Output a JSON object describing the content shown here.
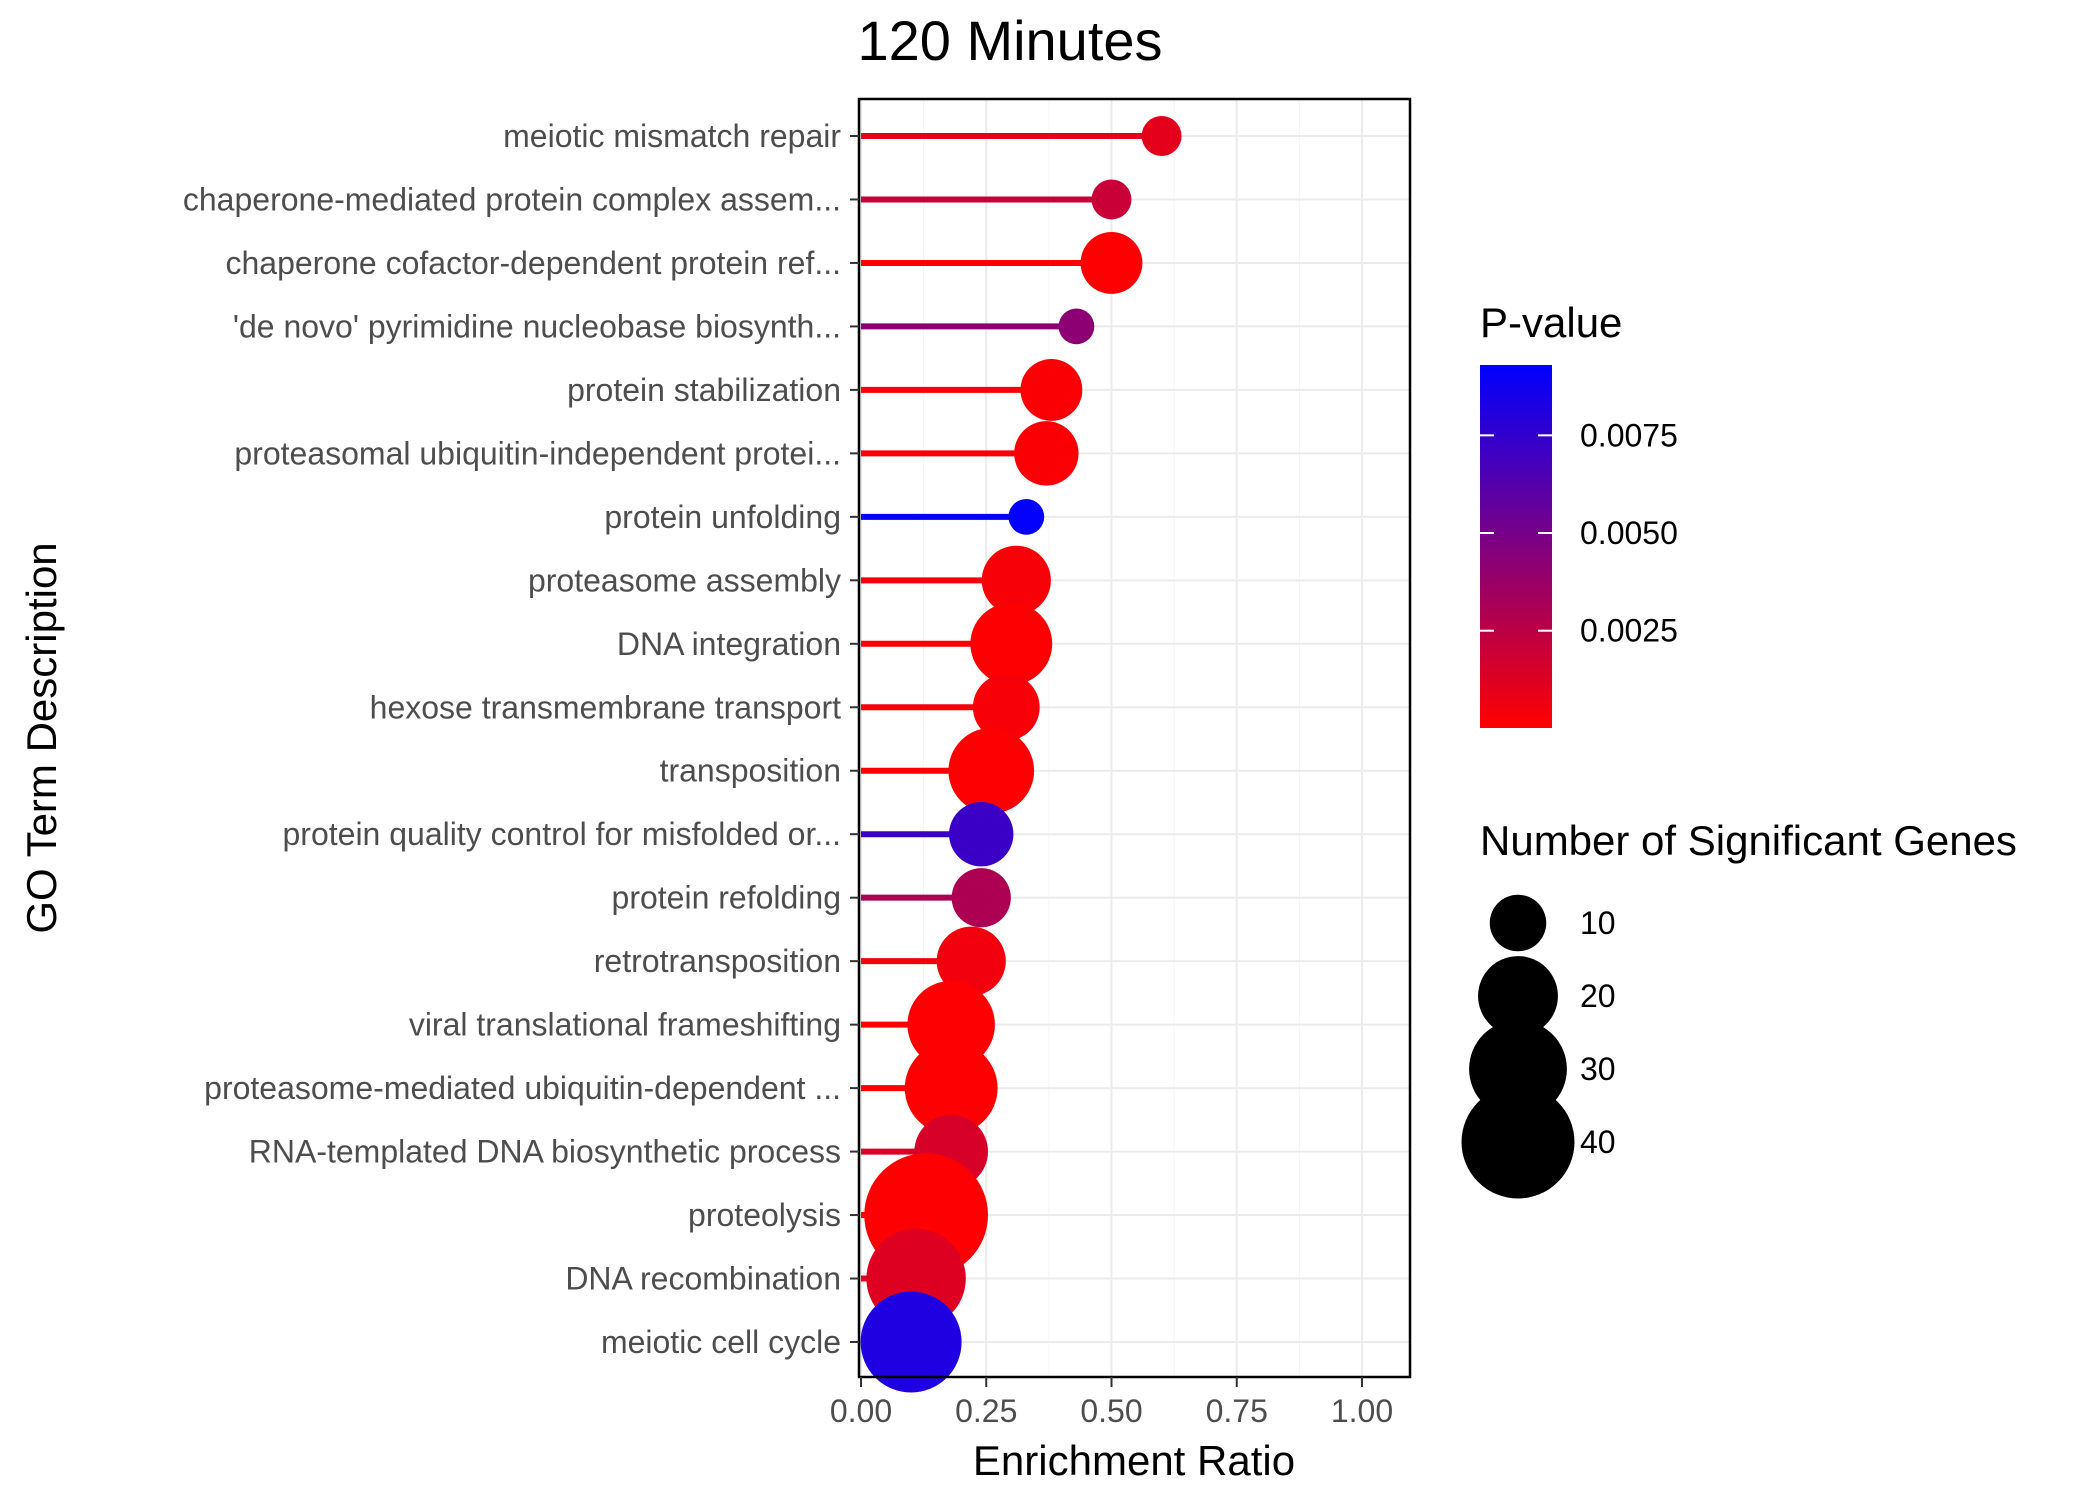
{
  "chart_data": {
    "type": "lollipop",
    "title": "120 Minutes",
    "xlabel": "Enrichment Ratio",
    "ylabel": "GO Term Description",
    "xlim": [
      0,
      1.1
    ],
    "x_ticks": [
      0,
      0.25,
      0.5,
      0.75,
      1.0
    ],
    "x_tick_labels": [
      "0.00",
      "0.25",
      "0.50",
      "0.75",
      "1.00"
    ],
    "grid": true,
    "categories": [
      "meiotic mismatch repair",
      "chaperone-mediated protein complex assem...",
      "chaperone cofactor-dependent protein ref...",
      "'de novo' pyrimidine nucleobase biosynth...",
      "protein stabilization",
      "proteasomal ubiquitin-independent protei...",
      "protein unfolding",
      "proteasome assembly",
      "DNA integration",
      "hexose transmembrane transport",
      "transposition",
      "protein quality control for misfolded or...",
      "protein refolding",
      "retrotransposition",
      "viral translational frameshifting",
      "proteasome-mediated ubiquitin-dependent ...",
      "RNA-templated DNA biosynthetic process",
      "proteolysis",
      "DNA recombination",
      "meiotic cell cycle"
    ],
    "enrichment_ratio": [
      0.6,
      0.5,
      0.5,
      0.43,
      0.38,
      0.37,
      0.33,
      0.31,
      0.3,
      0.29,
      0.26,
      0.24,
      0.24,
      0.22,
      0.18,
      0.18,
      0.18,
      0.13,
      0.11,
      0.1
    ],
    "p_value": [
      0.001,
      0.002,
      0.0001,
      0.0042,
      0.0002,
      0.0002,
      0.0092,
      0.0003,
      0.0001,
      0.0003,
      0.0001,
      0.0072,
      0.003,
      0.0005,
      0.0001,
      0.0001,
      0.0015,
      0.0001,
      0.0012,
      0.0082
    ],
    "significant_genes": [
      5,
      5,
      12,
      4,
      12,
      13,
      4,
      15,
      21,
      14,
      23,
      13,
      11,
      15,
      24,
      27,
      17,
      48,
      31,
      32
    ],
    "color_legend": {
      "title": "P-value",
      "domain": [
        1e-05,
        0.0093
      ],
      "colors": [
        "#ff0000",
        "#0000ff"
      ],
      "ticks": [
        0.0025,
        0.005,
        0.0075
      ],
      "tick_labels": [
        "0.0025",
        "0.0050",
        "0.0075"
      ],
      "placement": "right"
    },
    "size_legend": {
      "title": "Number of Significant Genes",
      "values": [
        10,
        20,
        30,
        40
      ],
      "labels": [
        "10",
        "20",
        "30",
        "40"
      ],
      "placement": "right"
    }
  }
}
